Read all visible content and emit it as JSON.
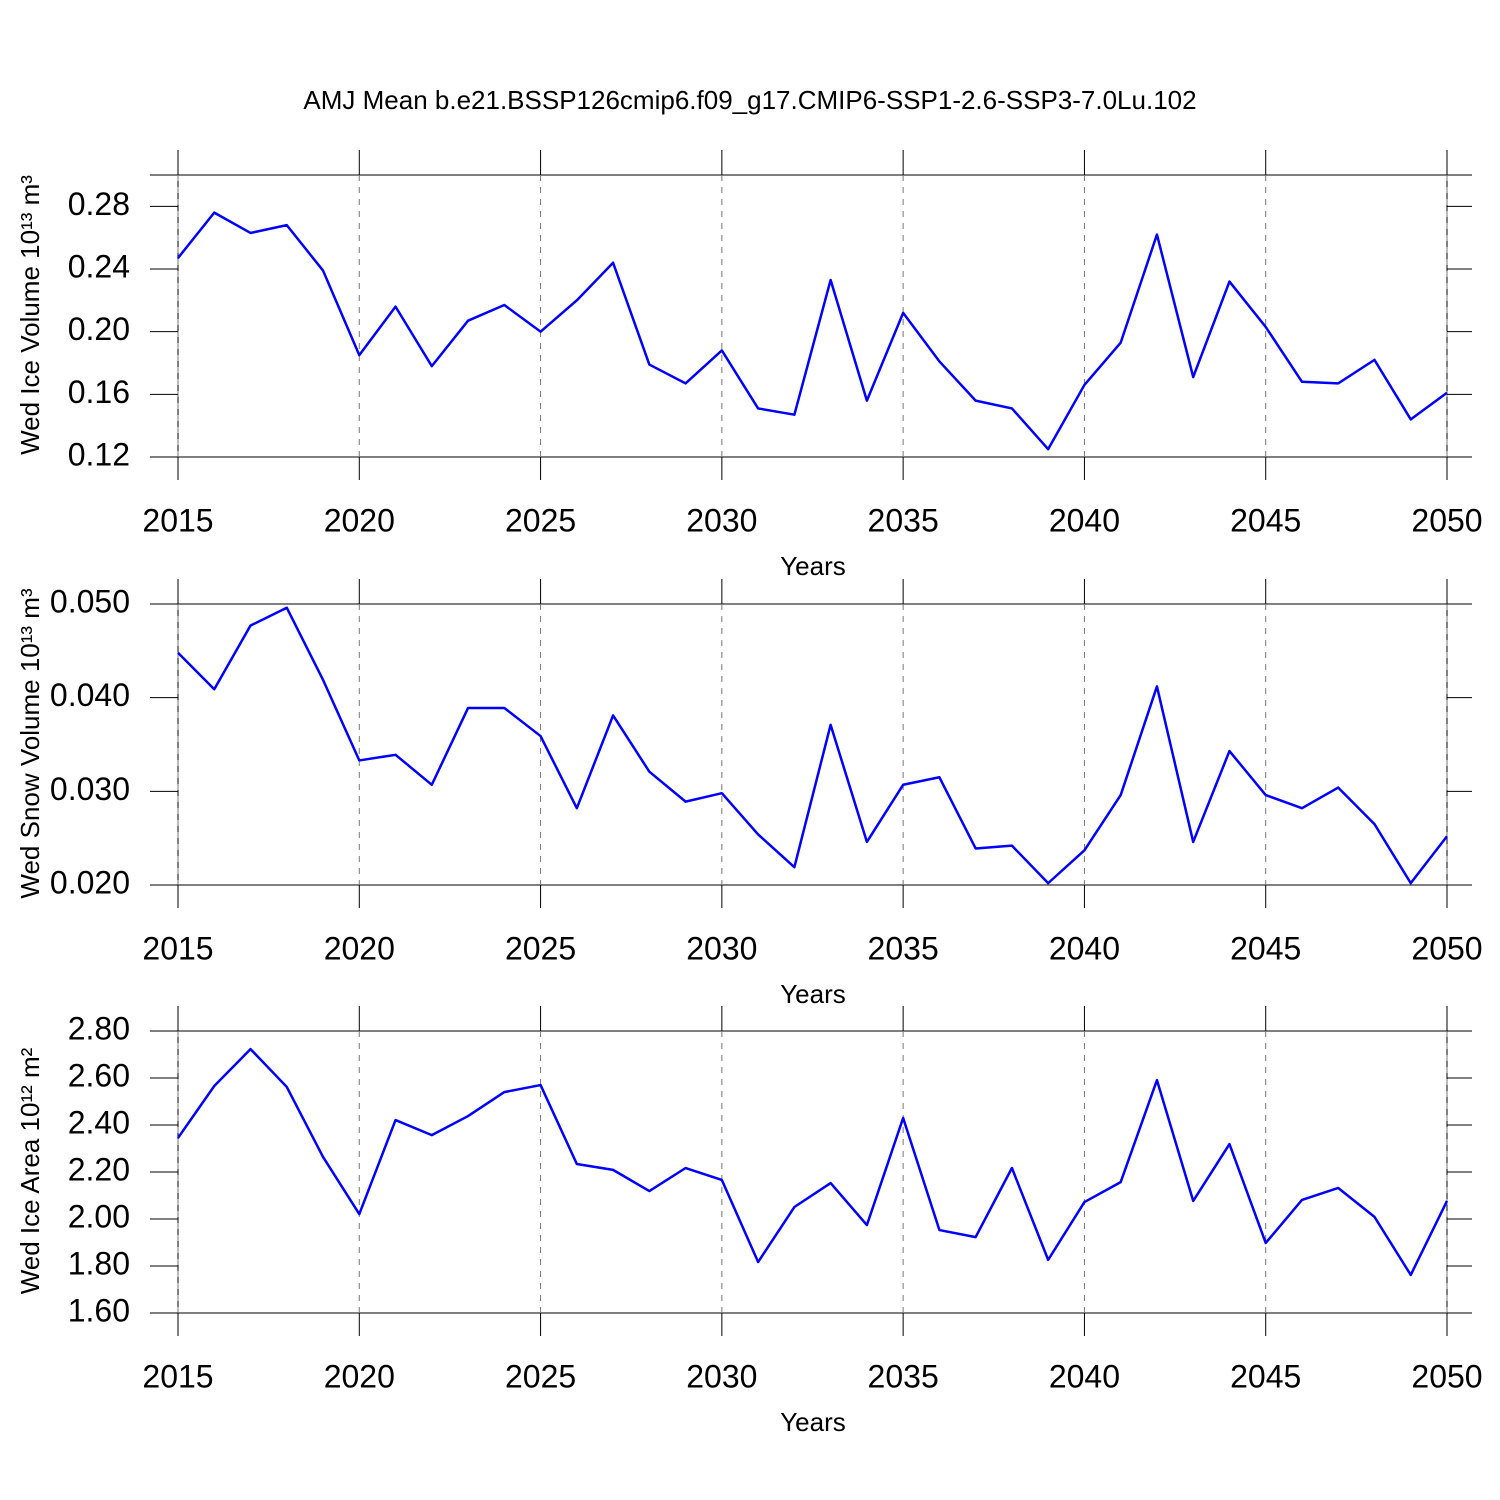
{
  "title": "AMJ Mean b.e21.BSSP126cmip6.f09_g17.CMIP6-SSP1-2.6-SSP3-7.0Lu.102",
  "chart_data": [
    {
      "type": "line",
      "xlabel": "Years",
      "ylabel": "Wed Ice Volume 10¹³ m³",
      "color": "#0000ff",
      "grid": true,
      "x": [
        2015,
        2016,
        2017,
        2018,
        2019,
        2020,
        2021,
        2022,
        2023,
        2024,
        2025,
        2026,
        2027,
        2028,
        2029,
        2030,
        2031,
        2032,
        2033,
        2034,
        2035,
        2036,
        2037,
        2038,
        2039,
        2040,
        2041,
        2042,
        2043,
        2044,
        2045,
        2046,
        2047,
        2048,
        2049,
        2050
      ],
      "values": [
        0.247,
        0.276,
        0.263,
        0.268,
        0.239,
        0.185,
        0.216,
        0.178,
        0.207,
        0.217,
        0.2,
        0.22,
        0.244,
        0.179,
        0.167,
        0.188,
        0.151,
        0.147,
        0.233,
        0.156,
        0.212,
        0.181,
        0.156,
        0.151,
        0.125,
        0.166,
        0.193,
        0.262,
        0.171,
        0.232,
        0.203,
        0.168,
        0.167,
        0.182,
        0.144,
        0.161
      ],
      "xlim": [
        2015,
        2050
      ],
      "xticks": [
        2015,
        2020,
        2025,
        2030,
        2035,
        2040,
        2045,
        2050
      ],
      "ylim": [
        0.12,
        0.3
      ],
      "yticks": [
        0.12,
        0.16,
        {
          "value": 0.2,
          "label": "0.20"
        },
        0.24,
        0.28
      ]
    },
    {
      "type": "line",
      "xlabel": "Years",
      "ylabel": "Wed Snow Volume 10¹³ m³",
      "color": "#0000ff",
      "grid": true,
      "x": [
        2015,
        2016,
        2017,
        2018,
        2019,
        2020,
        2021,
        2022,
        2023,
        2024,
        2025,
        2026,
        2027,
        2028,
        2029,
        2030,
        2031,
        2032,
        2033,
        2034,
        2035,
        2036,
        2037,
        2038,
        2039,
        2040,
        2041,
        2042,
        2043,
        2044,
        2045,
        2046,
        2047,
        2048,
        2049,
        2050
      ],
      "values": [
        0.0448,
        0.0409,
        0.0477,
        0.0496,
        0.0419,
        0.0333,
        0.0339,
        0.0307,
        0.0389,
        0.0389,
        0.0359,
        0.0282,
        0.0381,
        0.0321,
        0.0289,
        0.0298,
        0.0254,
        0.0219,
        0.0371,
        0.0246,
        0.0307,
        0.0315,
        0.0239,
        0.0242,
        0.0202,
        0.0237,
        0.0296,
        0.0412,
        0.0246,
        0.0343,
        0.0296,
        0.0282,
        0.0304,
        0.0265,
        0.0202,
        0.0252
      ],
      "xlim": [
        2015,
        2050
      ],
      "xticks": [
        2015,
        2020,
        2025,
        2030,
        2035,
        2040,
        2045,
        2050
      ],
      "ylim": [
        0.02,
        0.05
      ],
      "yticks": [
        {
          "value": 0.02,
          "label": "0.020"
        },
        {
          "value": 0.03,
          "label": "0.030"
        },
        {
          "value": 0.04,
          "label": "0.040"
        },
        {
          "value": 0.05,
          "label": "0.050"
        }
      ]
    },
    {
      "type": "line",
      "xlabel": "Years",
      "ylabel": "Wed Ice Area 10¹² m²",
      "color": "#0000ff",
      "grid": true,
      "x": [
        2015,
        2016,
        2017,
        2018,
        2019,
        2020,
        2021,
        2022,
        2023,
        2024,
        2025,
        2026,
        2027,
        2028,
        2029,
        2030,
        2031,
        2032,
        2033,
        2034,
        2035,
        2036,
        2037,
        2038,
        2039,
        2040,
        2041,
        2042,
        2043,
        2044,
        2045,
        2046,
        2047,
        2048,
        2049,
        2050
      ],
      "values": [
        2.345,
        2.566,
        2.723,
        2.562,
        2.264,
        2.021,
        2.421,
        2.357,
        2.438,
        2.54,
        2.57,
        2.234,
        2.209,
        2.119,
        2.217,
        2.166,
        1.817,
        2.051,
        2.153,
        1.974,
        2.43,
        1.953,
        1.923,
        2.217,
        1.826,
        2.072,
        2.157,
        2.591,
        2.077,
        2.319,
        1.898,
        2.081,
        2.132,
        2.009,
        1.762,
        2.077
      ],
      "xlim": [
        2015,
        2050
      ],
      "xticks": [
        2015,
        2020,
        2025,
        2030,
        2035,
        2040,
        2045,
        2050
      ],
      "ylim": [
        1.6,
        2.8
      ],
      "yticks": [
        {
          "value": 1.6,
          "label": "1.60"
        },
        {
          "value": 1.8,
          "label": "1.80"
        },
        {
          "value": 2.0,
          "label": "2.00"
        },
        {
          "value": 2.2,
          "label": "2.20"
        },
        {
          "value": 2.4,
          "label": "2.40"
        },
        {
          "value": 2.6,
          "label": "2.60"
        },
        {
          "value": 2.8,
          "label": "2.80"
        }
      ]
    }
  ]
}
